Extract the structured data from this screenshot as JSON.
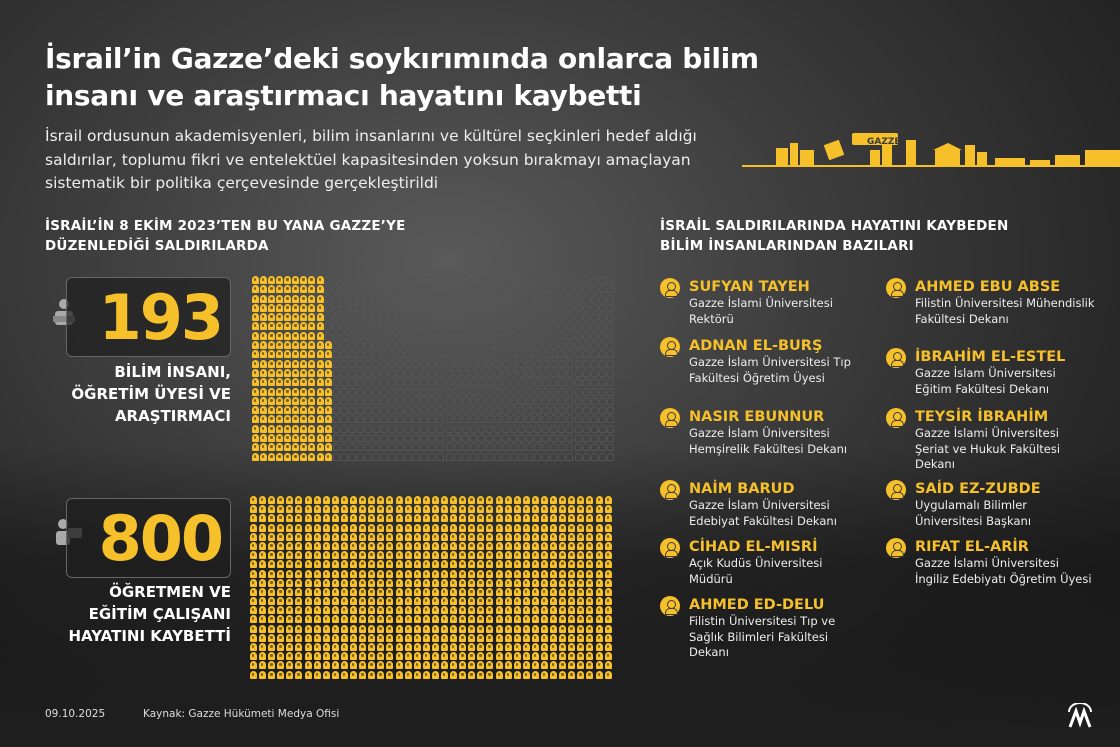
{
  "title": "İsrail’in Gazze’deki soykırımında onlarca bilim insanı ve araştırmacı hayatını kaybetti",
  "subtitle": "İsrail ordusunun akademisyenleri, bilim insanlarını ve kültürel seçkinleri hedef aldığı saldırılar, toplumu fikri ve entelektüel kapasitesinden yoksun bırakmayı amaçlayan sistematik bir politika çerçevesinde gerçekleştirildi",
  "illustration": {
    "sign_text": "GAZZE"
  },
  "left_section": {
    "heading_line1": "İSRAİL’İN 8 EKİM 2023’TEN BU YANA GAZZE’YE",
    "heading_line2": "DÜZENLEDİĞİ SALDIRILARDA",
    "stats": [
      {
        "value": "193",
        "label_lines": [
          "BİLİM İNSANI,",
          "ÖĞRETİM ÜYESİ VE",
          "ARAŞTIRMACI"
        ],
        "count": 193
      },
      {
        "value": "800",
        "label_lines": [
          "ÖĞRETMEN VE",
          "EĞİTİM ÇALIŞANI",
          "HAYATINI KAYBETTİ"
        ],
        "count": 800
      }
    ]
  },
  "right_section": {
    "heading_line1": "İSRAİL SALDIRILARINDA HAYATINI KAYBEDEN",
    "heading_line2": "BİLİM İNSANLARINDAN BAZILARI",
    "people": [
      {
        "name": "SUFYAN TAYEH",
        "role": "Gazze İslami Üniversitesi Rektörü"
      },
      {
        "name": "ADNAN EL-BURŞ",
        "role": "Gazze İslam Üniversitesi Tıp Fakültesi Öğretim Üyesi"
      },
      {
        "name": "NASIR EBUNNUR",
        "role": "Gazze İslam Üniversitesi Hemşirelik Fakültesi Dekanı"
      },
      {
        "name": "NAİM BARUD",
        "role": "Gazze İslam Üniversitesi Edebiyat Fakültesi Dekanı"
      },
      {
        "name": "CİHAD EL-MISRİ",
        "role": "Açık Kudüs Üniversitesi Müdürü"
      },
      {
        "name": "AHMED ED-DELU",
        "role": "Filistin Üniversitesi Tıp ve Sağlık Bilimleri Fakültesi Dekanı"
      },
      {
        "name": "AHMED EBU ABSE",
        "role": "Filistin Üniversitesi Mühendislik Fakültesi Dekanı"
      },
      {
        "name": "İBRAHİM EL-ESTEL",
        "role": "Gazze İslam Üniversitesi Eğitim Fakültesi Dekanı"
      },
      {
        "name": "TEYSİR İBRAHİM",
        "role": "Gazze İslami Üniversitesi Şeriat ve Hukuk Fakültesi Dekanı"
      },
      {
        "name": "SAİD EZ-ZUBDE",
        "role": "Uygulamalı Bilimler Üniversitesi Başkanı"
      },
      {
        "name": "RIFAT EL-ARİR",
        "role": "Gazze İslami Üniversitesi İngiliz Edebiyatı Öğretim Üyesi"
      }
    ]
  },
  "footer": {
    "date": "09.10.2025",
    "source": "Kaynak: Gazze Hükümeti Medya Ofisi",
    "logo_text": "AA"
  },
  "colors": {
    "accent": "#f5c02a",
    "background": "#3a3a3a"
  }
}
